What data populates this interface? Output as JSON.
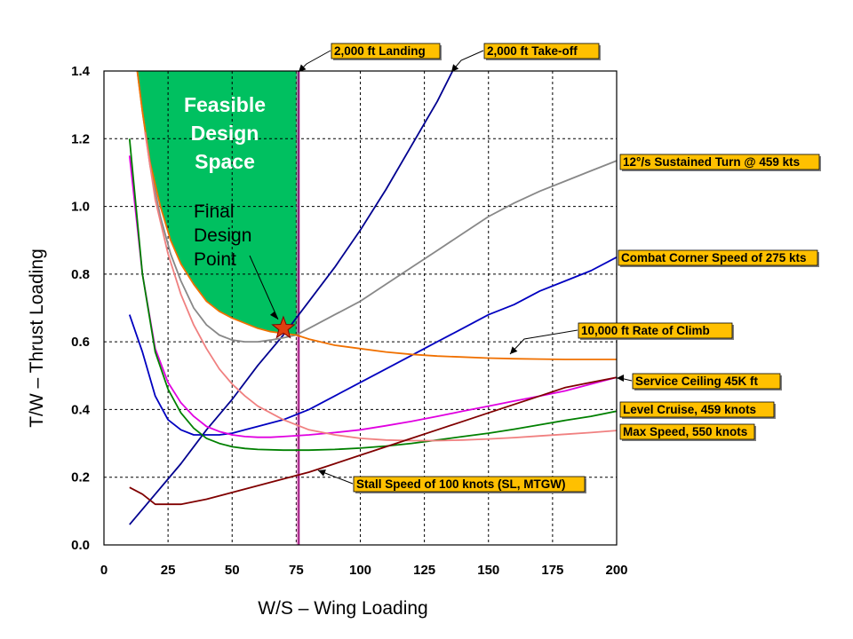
{
  "chart_data": {
    "type": "line",
    "xlabel": "W/S – Wing Loading",
    "ylabel": "T/W – Thrust Loading",
    "xlim": [
      0,
      200
    ],
    "ylim": [
      0,
      1.4
    ],
    "x_ticks": [
      0,
      25,
      50,
      75,
      100,
      125,
      150,
      175,
      200
    ],
    "y_ticks": [
      0.0,
      0.2,
      0.4,
      0.6,
      0.8,
      1.0,
      1.2,
      1.4
    ],
    "x_tick_labels": [
      "0",
      "25",
      "50",
      "75",
      "100",
      "125",
      "150",
      "175",
      "200"
    ],
    "y_tick_labels": [
      "0.0",
      "0.2",
      "0.4",
      "0.6",
      "0.8",
      "1.0",
      "1.2",
      "1.4"
    ],
    "grid": true,
    "region": {
      "label_lines": [
        "Feasible",
        "Design",
        "Space"
      ],
      "color": "#00c060"
    },
    "design_point": {
      "x": 70,
      "y": 0.64,
      "label_lines": [
        "Final",
        "Design",
        "Point"
      ],
      "color": "#e04010"
    },
    "series": [
      {
        "name": "2,000 ft Landing",
        "type": "vline",
        "x": 76,
        "color": "#a01080",
        "callout": {
          "text": "2,000 ft Landing"
        }
      },
      {
        "name": "2,000 ft Take-off",
        "color": "#000090",
        "x": [
          10,
          20,
          30,
          40,
          50,
          60,
          70,
          80,
          90,
          100,
          110,
          120,
          130,
          136
        ],
        "y": [
          0.06,
          0.15,
          0.24,
          0.34,
          0.43,
          0.53,
          0.62,
          0.72,
          0.82,
          0.93,
          1.05,
          1.18,
          1.31,
          1.4
        ],
        "callout": {
          "text": "2,000 ft Take-off"
        }
      },
      {
        "name": "12°/s Sustained Turn @ 459 kts",
        "color": "#888888",
        "x": [
          13,
          15,
          18,
          22,
          26,
          30,
          35,
          40,
          45,
          50,
          55,
          60,
          65,
          70,
          75,
          80,
          90,
          100,
          110,
          120,
          130,
          140,
          150,
          160,
          170,
          180,
          190,
          200
        ],
        "y": [
          1.4,
          1.28,
          1.12,
          0.97,
          0.86,
          0.78,
          0.7,
          0.65,
          0.62,
          0.605,
          0.6,
          0.6,
          0.605,
          0.612,
          0.62,
          0.64,
          0.68,
          0.72,
          0.77,
          0.82,
          0.87,
          0.92,
          0.97,
          1.01,
          1.045,
          1.075,
          1.105,
          1.135
        ],
        "callout": {
          "text": "12°/s Sustained Turn @ 459 kts"
        }
      },
      {
        "name": "Combat Corner Speed of 275 kts",
        "color": "#0000c0",
        "x": [
          10,
          15,
          20,
          25,
          30,
          35,
          40,
          45,
          50,
          55,
          60,
          70,
          80,
          90,
          100,
          110,
          120,
          130,
          140,
          150,
          160,
          170,
          180,
          190,
          200
        ],
        "y": [
          0.68,
          0.57,
          0.44,
          0.37,
          0.34,
          0.325,
          0.325,
          0.325,
          0.33,
          0.34,
          0.35,
          0.37,
          0.4,
          0.44,
          0.48,
          0.52,
          0.56,
          0.6,
          0.64,
          0.68,
          0.71,
          0.75,
          0.78,
          0.81,
          0.85
        ],
        "callout": {
          "text": "Combat Corner Speed of 275 kts"
        }
      },
      {
        "name": "10,000 ft Rate of Climb",
        "color": "#f07000",
        "x": [
          13,
          15,
          18,
          22,
          26,
          30,
          35,
          40,
          45,
          50,
          55,
          60,
          65,
          70,
          75,
          80,
          90,
          100,
          110,
          120,
          130,
          140,
          150,
          160,
          170,
          180,
          190,
          200
        ],
        "y": [
          1.4,
          1.28,
          1.13,
          1.0,
          0.9,
          0.83,
          0.77,
          0.72,
          0.69,
          0.67,
          0.655,
          0.64,
          0.63,
          0.625,
          0.62,
          0.608,
          0.59,
          0.58,
          0.57,
          0.563,
          0.558,
          0.555,
          0.552,
          0.55,
          0.549,
          0.548,
          0.548,
          0.548
        ],
        "callout": {
          "text": "10,000 ft Rate of Climb"
        }
      },
      {
        "name": "Service Ceiling 45K ft",
        "color": "#e000e0",
        "x": [
          10,
          15,
          20,
          25,
          30,
          35,
          40,
          45,
          50,
          55,
          60,
          65,
          70,
          80,
          90,
          100,
          110,
          120,
          130,
          140,
          150,
          160,
          170,
          180,
          190,
          200
        ],
        "y": [
          1.15,
          0.8,
          0.58,
          0.48,
          0.42,
          0.38,
          0.35,
          0.335,
          0.325,
          0.32,
          0.318,
          0.318,
          0.32,
          0.325,
          0.332,
          0.34,
          0.352,
          0.365,
          0.38,
          0.395,
          0.41,
          0.425,
          0.44,
          0.455,
          0.475,
          0.495
        ],
        "callout": {
          "text": "Service Ceiling 45K ft"
        }
      },
      {
        "name": "Level Cruise, 459 knots",
        "color": "#008000",
        "x": [
          10,
          15,
          20,
          25,
          30,
          35,
          40,
          45,
          50,
          55,
          60,
          70,
          80,
          90,
          100,
          110,
          120,
          130,
          140,
          150,
          160,
          170,
          180,
          190,
          200
        ],
        "y": [
          1.2,
          0.8,
          0.57,
          0.46,
          0.39,
          0.345,
          0.315,
          0.3,
          0.29,
          0.285,
          0.282,
          0.28,
          0.28,
          0.282,
          0.286,
          0.292,
          0.3,
          0.31,
          0.32,
          0.33,
          0.342,
          0.355,
          0.368,
          0.38,
          0.395
        ],
        "callout": {
          "text": "Level Cruise, 459 knots"
        }
      },
      {
        "name": "Max Speed, 550 knots",
        "color": "#f08080",
        "x": [
          16,
          20,
          25,
          30,
          35,
          40,
          45,
          50,
          55,
          60,
          70,
          80,
          90,
          100,
          110,
          120,
          130,
          140,
          150,
          160,
          170,
          180,
          190,
          200
        ],
        "y": [
          1.22,
          1.02,
          0.86,
          0.74,
          0.65,
          0.58,
          0.52,
          0.475,
          0.44,
          0.41,
          0.37,
          0.34,
          0.325,
          0.315,
          0.31,
          0.308,
          0.308,
          0.31,
          0.313,
          0.317,
          0.322,
          0.327,
          0.332,
          0.338
        ],
        "callout": {
          "text": "Max Speed, 550 knots"
        }
      },
      {
        "name": "Stall Speed of 100 knots (SL, MTGW)",
        "color": "#800000",
        "x": [
          10,
          15,
          20,
          25,
          30,
          40,
          50,
          60,
          70,
          80,
          90,
          100,
          110,
          120,
          130,
          140,
          150,
          160,
          170,
          180,
          190,
          200
        ],
        "y": [
          0.17,
          0.15,
          0.12,
          0.12,
          0.12,
          0.135,
          0.155,
          0.175,
          0.195,
          0.215,
          0.24,
          0.265,
          0.29,
          0.315,
          0.34,
          0.365,
          0.39,
          0.415,
          0.44,
          0.465,
          0.48,
          0.495
        ],
        "callout": {
          "text": "Stall Speed of 100 knots (SL, MTGW)"
        }
      }
    ]
  }
}
